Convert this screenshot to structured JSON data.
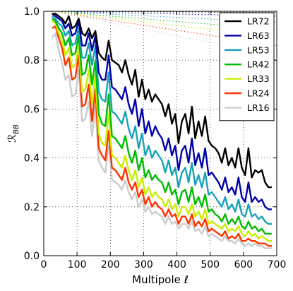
{
  "chart_data": {
    "type": "line",
    "xlabel": "Multipole ℓ",
    "ylabel": "ℛ_BB",
    "xlim": [
      0,
      700
    ],
    "ylim": [
      0.0,
      1.0
    ],
    "xticks": [
      "0",
      "100",
      "200",
      "300",
      "400",
      "500",
      "600",
      "700"
    ],
    "yticks": [
      "0.0",
      "0.2",
      "0.4",
      "0.6",
      "0.8",
      "1.0"
    ],
    "grid": true,
    "legend_position": "top-right",
    "x": [
      25,
      35,
      45,
      55,
      65,
      75,
      85,
      95,
      105,
      115,
      125,
      135,
      145,
      155,
      165,
      175,
      185,
      195,
      205,
      215,
      225,
      235,
      245,
      255,
      265,
      275,
      285,
      295,
      305,
      315,
      325,
      335,
      345,
      355,
      365,
      375,
      385,
      395,
      405,
      415,
      425,
      435,
      445,
      455,
      465,
      475,
      485,
      495,
      505,
      515,
      525,
      535,
      545,
      555,
      565,
      575,
      585,
      595,
      605,
      615,
      625,
      635,
      645,
      655,
      665,
      675,
      685
    ],
    "series": [
      {
        "name": "LR72",
        "color": "#000000",
        "style": "solid",
        "values": [
          0.99,
          0.99,
          0.98,
          0.97,
          0.95,
          0.98,
          0.93,
          0.94,
          0.97,
          0.91,
          0.9,
          0.93,
          0.89,
          0.92,
          0.83,
          0.81,
          0.8,
          0.88,
          0.8,
          0.79,
          0.78,
          0.75,
          0.8,
          0.74,
          0.7,
          0.76,
          0.65,
          0.72,
          0.64,
          0.68,
          0.63,
          0.66,
          0.64,
          0.62,
          0.57,
          0.62,
          0.54,
          0.58,
          0.46,
          0.55,
          0.58,
          0.5,
          0.61,
          0.48,
          0.55,
          0.49,
          0.57,
          0.47,
          0.45,
          0.44,
          0.42,
          0.38,
          0.44,
          0.37,
          0.4,
          0.36,
          0.44,
          0.36,
          0.33,
          0.44,
          0.32,
          0.35,
          0.34,
          0.35,
          0.3,
          0.28,
          0.28
        ]
      },
      {
        "name": "LR63",
        "color": "#0000aa",
        "style": "solid",
        "values": [
          0.99,
          0.98,
          0.97,
          0.96,
          0.93,
          0.95,
          0.9,
          0.91,
          0.96,
          0.86,
          0.86,
          0.91,
          0.84,
          0.9,
          0.75,
          0.72,
          0.72,
          0.82,
          0.69,
          0.68,
          0.66,
          0.64,
          0.69,
          0.62,
          0.58,
          0.64,
          0.53,
          0.6,
          0.5,
          0.55,
          0.49,
          0.53,
          0.5,
          0.48,
          0.43,
          0.48,
          0.41,
          0.45,
          0.35,
          0.43,
          0.45,
          0.38,
          0.48,
          0.37,
          0.42,
          0.36,
          0.44,
          0.33,
          0.34,
          0.32,
          0.3,
          0.27,
          0.32,
          0.26,
          0.28,
          0.25,
          0.32,
          0.24,
          0.22,
          0.3,
          0.22,
          0.24,
          0.22,
          0.23,
          0.2,
          0.19,
          0.19
        ]
      },
      {
        "name": "LR53",
        "color": "#17a2b8",
        "style": "solid",
        "values": [
          0.98,
          0.97,
          0.95,
          0.94,
          0.9,
          0.92,
          0.86,
          0.87,
          0.93,
          0.81,
          0.81,
          0.87,
          0.78,
          0.86,
          0.67,
          0.64,
          0.63,
          0.75,
          0.59,
          0.58,
          0.56,
          0.54,
          0.59,
          0.52,
          0.48,
          0.53,
          0.44,
          0.5,
          0.41,
          0.45,
          0.4,
          0.43,
          0.41,
          0.39,
          0.34,
          0.39,
          0.33,
          0.36,
          0.28,
          0.34,
          0.36,
          0.3,
          0.38,
          0.29,
          0.33,
          0.28,
          0.34,
          0.25,
          0.26,
          0.24,
          0.22,
          0.2,
          0.24,
          0.19,
          0.21,
          0.18,
          0.23,
          0.17,
          0.16,
          0.21,
          0.16,
          0.17,
          0.15,
          0.16,
          0.14,
          0.13,
          0.13
        ]
      },
      {
        "name": "LR42",
        "color": "#00bb00",
        "style": "solid",
        "values": [
          0.97,
          0.96,
          0.93,
          0.91,
          0.86,
          0.89,
          0.82,
          0.83,
          0.9,
          0.74,
          0.75,
          0.82,
          0.7,
          0.8,
          0.58,
          0.54,
          0.53,
          0.66,
          0.49,
          0.48,
          0.46,
          0.44,
          0.49,
          0.42,
          0.38,
          0.43,
          0.35,
          0.4,
          0.32,
          0.35,
          0.31,
          0.33,
          0.31,
          0.3,
          0.26,
          0.3,
          0.25,
          0.27,
          0.21,
          0.26,
          0.27,
          0.22,
          0.28,
          0.21,
          0.24,
          0.2,
          0.25,
          0.18,
          0.19,
          0.17,
          0.16,
          0.14,
          0.17,
          0.13,
          0.15,
          0.13,
          0.16,
          0.12,
          0.11,
          0.14,
          0.11,
          0.12,
          0.1,
          0.11,
          0.09,
          0.09,
          0.09
        ]
      },
      {
        "name": "LR33",
        "color": "#ccee00",
        "style": "solid",
        "values": [
          0.96,
          0.95,
          0.91,
          0.88,
          0.82,
          0.85,
          0.77,
          0.78,
          0.86,
          0.67,
          0.68,
          0.76,
          0.62,
          0.74,
          0.5,
          0.46,
          0.45,
          0.58,
          0.41,
          0.4,
          0.38,
          0.36,
          0.41,
          0.35,
          0.31,
          0.35,
          0.28,
          0.32,
          0.25,
          0.28,
          0.24,
          0.26,
          0.24,
          0.23,
          0.2,
          0.23,
          0.19,
          0.21,
          0.16,
          0.2,
          0.2,
          0.17,
          0.21,
          0.16,
          0.18,
          0.15,
          0.19,
          0.13,
          0.14,
          0.13,
          0.12,
          0.11,
          0.13,
          0.1,
          0.11,
          0.1,
          0.12,
          0.09,
          0.08,
          0.1,
          0.08,
          0.09,
          0.07,
          0.08,
          0.07,
          0.06,
          0.06
        ]
      },
      {
        "name": "LR24",
        "color": "#ff3300",
        "style": "solid",
        "values": [
          0.93,
          0.94,
          0.89,
          0.85,
          0.78,
          0.81,
          0.72,
          0.73,
          0.82,
          0.61,
          0.62,
          0.7,
          0.55,
          0.68,
          0.44,
          0.41,
          0.39,
          0.51,
          0.36,
          0.35,
          0.33,
          0.31,
          0.36,
          0.3,
          0.27,
          0.3,
          0.24,
          0.27,
          0.21,
          0.24,
          0.2,
          0.22,
          0.2,
          0.19,
          0.16,
          0.19,
          0.16,
          0.17,
          0.13,
          0.16,
          0.16,
          0.13,
          0.17,
          0.12,
          0.14,
          0.12,
          0.15,
          0.1,
          0.11,
          0.1,
          0.09,
          0.08,
          0.1,
          0.07,
          0.08,
          0.07,
          0.09,
          0.06,
          0.06,
          0.07,
          0.06,
          0.06,
          0.05,
          0.05,
          0.05,
          0.04,
          0.04
        ]
      },
      {
        "name": "LR16",
        "color": "#cccccc",
        "style": "solid",
        "values": [
          0.89,
          0.91,
          0.84,
          0.79,
          0.72,
          0.74,
          0.65,
          0.66,
          0.76,
          0.55,
          0.56,
          0.63,
          0.49,
          0.61,
          0.39,
          0.36,
          0.34,
          0.45,
          0.31,
          0.3,
          0.29,
          0.27,
          0.31,
          0.26,
          0.23,
          0.26,
          0.2,
          0.23,
          0.18,
          0.2,
          0.17,
          0.18,
          0.17,
          0.16,
          0.13,
          0.16,
          0.13,
          0.14,
          0.11,
          0.13,
          0.13,
          0.11,
          0.14,
          0.1,
          0.11,
          0.09,
          0.12,
          0.08,
          0.09,
          0.08,
          0.07,
          0.06,
          0.08,
          0.06,
          0.06,
          0.05,
          0.07,
          0.05,
          0.04,
          0.05,
          0.04,
          0.05,
          0.04,
          0.04,
          0.03,
          0.03,
          0.03
        ]
      }
    ],
    "reference_series": [
      {
        "color": "#000000",
        "style": "dotted",
        "x": [
          25,
          700
        ],
        "values": [
          1.0,
          0.995
        ]
      },
      {
        "color": "#0000aa",
        "style": "dotted",
        "x": [
          25,
          700
        ],
        "values": [
          1.0,
          0.98
        ]
      },
      {
        "color": "#17a2b8",
        "style": "dotted",
        "x": [
          25,
          700
        ],
        "values": [
          1.0,
          0.955
        ]
      },
      {
        "color": "#00bb00",
        "style": "dotted",
        "x": [
          25,
          700
        ],
        "values": [
          1.0,
          0.925
        ]
      },
      {
        "color": "#ccee00",
        "style": "dotted",
        "x": [
          25,
          700
        ],
        "values": [
          1.0,
          0.895
        ]
      },
      {
        "color": "#ff3300",
        "style": "dotted",
        "x": [
          25,
          700
        ],
        "values": [
          1.0,
          0.86
        ]
      },
      {
        "color": "#cccccc",
        "style": "dotted",
        "x": [
          25,
          700
        ],
        "values": [
          1.0,
          0.82
        ]
      }
    ]
  }
}
